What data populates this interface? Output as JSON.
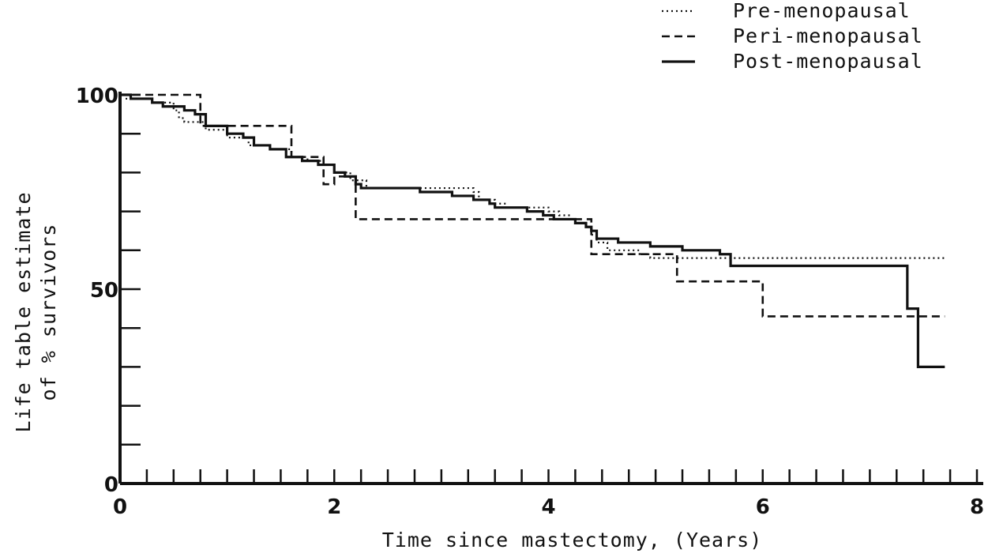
{
  "chart_data": {
    "type": "line",
    "step": true,
    "xlabel": "Time since mastectomy, (Years)",
    "ylabel_lines": [
      "Life table estimate",
      "of % survivors"
    ],
    "xlim": [
      0,
      8
    ],
    "ylim": [
      0,
      100
    ],
    "x_ticks": [
      0,
      2,
      4,
      6,
      8
    ],
    "x_tick_labels": [
      "0",
      "2",
      "4",
      "6",
      "8"
    ],
    "y_ticks": [
      0,
      50,
      100
    ],
    "y_tick_labels": [
      "0",
      "50",
      "100"
    ],
    "x_minor_step": 0.25,
    "y_minor_step": 10,
    "legend_position": "top-right",
    "grid": false,
    "series": [
      {
        "name": "Pre-menopausal",
        "style": "dotted",
        "points": [
          [
            0,
            100
          ],
          [
            0.05,
            99
          ],
          [
            0.3,
            98
          ],
          [
            0.5,
            96
          ],
          [
            0.55,
            94
          ],
          [
            0.6,
            93
          ],
          [
            0.8,
            91
          ],
          [
            1.0,
            89
          ],
          [
            1.2,
            87
          ],
          [
            1.4,
            86
          ],
          [
            1.6,
            84
          ],
          [
            1.75,
            83
          ],
          [
            1.9,
            82
          ],
          [
            2.0,
            80
          ],
          [
            2.15,
            78
          ],
          [
            2.3,
            76
          ],
          [
            3.1,
            76
          ],
          [
            3.3,
            75
          ],
          [
            3.35,
            73
          ],
          [
            3.5,
            72
          ],
          [
            3.6,
            71
          ],
          [
            3.9,
            71
          ],
          [
            4.0,
            70
          ],
          [
            4.1,
            69
          ],
          [
            4.2,
            68
          ],
          [
            4.25,
            67
          ],
          [
            4.35,
            66
          ],
          [
            4.4,
            64
          ],
          [
            4.45,
            62
          ],
          [
            4.55,
            60
          ],
          [
            4.75,
            60
          ],
          [
            4.85,
            59
          ],
          [
            4.95,
            58
          ],
          [
            7.7,
            58
          ]
        ]
      },
      {
        "name": "Peri-menopausal",
        "style": "dashed",
        "points": [
          [
            0,
            100
          ],
          [
            0.75,
            100
          ],
          [
            0.75,
            92
          ],
          [
            1.6,
            92
          ],
          [
            1.6,
            84
          ],
          [
            1.9,
            84
          ],
          [
            1.9,
            77
          ],
          [
            2.0,
            77
          ],
          [
            2.0,
            79
          ],
          [
            2.2,
            79
          ],
          [
            2.2,
            68
          ],
          [
            4.4,
            68
          ],
          [
            4.4,
            59
          ],
          [
            5.2,
            59
          ],
          [
            5.2,
            52
          ],
          [
            6.0,
            52
          ],
          [
            6.0,
            43
          ],
          [
            7.7,
            43
          ]
        ]
      },
      {
        "name": "Post-menopausal",
        "style": "solid",
        "points": [
          [
            0,
            100
          ],
          [
            0.1,
            99
          ],
          [
            0.3,
            98
          ],
          [
            0.4,
            97
          ],
          [
            0.6,
            96
          ],
          [
            0.7,
            95
          ],
          [
            0.8,
            92
          ],
          [
            1.0,
            90
          ],
          [
            1.15,
            89
          ],
          [
            1.25,
            87
          ],
          [
            1.4,
            86
          ],
          [
            1.55,
            84
          ],
          [
            1.7,
            83
          ],
          [
            1.85,
            82
          ],
          [
            2.0,
            80
          ],
          [
            2.1,
            79
          ],
          [
            2.2,
            77
          ],
          [
            2.25,
            76
          ],
          [
            2.75,
            76
          ],
          [
            2.8,
            75
          ],
          [
            3.0,
            75
          ],
          [
            3.1,
            74
          ],
          [
            3.3,
            73
          ],
          [
            3.45,
            72
          ],
          [
            3.5,
            71
          ],
          [
            3.75,
            71
          ],
          [
            3.8,
            70
          ],
          [
            3.95,
            69
          ],
          [
            4.05,
            68
          ],
          [
            4.25,
            67
          ],
          [
            4.35,
            66
          ],
          [
            4.4,
            65
          ],
          [
            4.45,
            63
          ],
          [
            4.65,
            62
          ],
          [
            4.95,
            61
          ],
          [
            5.25,
            60
          ],
          [
            5.6,
            59
          ],
          [
            5.7,
            56
          ],
          [
            7.3,
            56
          ],
          [
            7.35,
            45
          ],
          [
            7.45,
            45
          ],
          [
            7.45,
            30
          ],
          [
            7.7,
            30
          ]
        ]
      }
    ]
  }
}
